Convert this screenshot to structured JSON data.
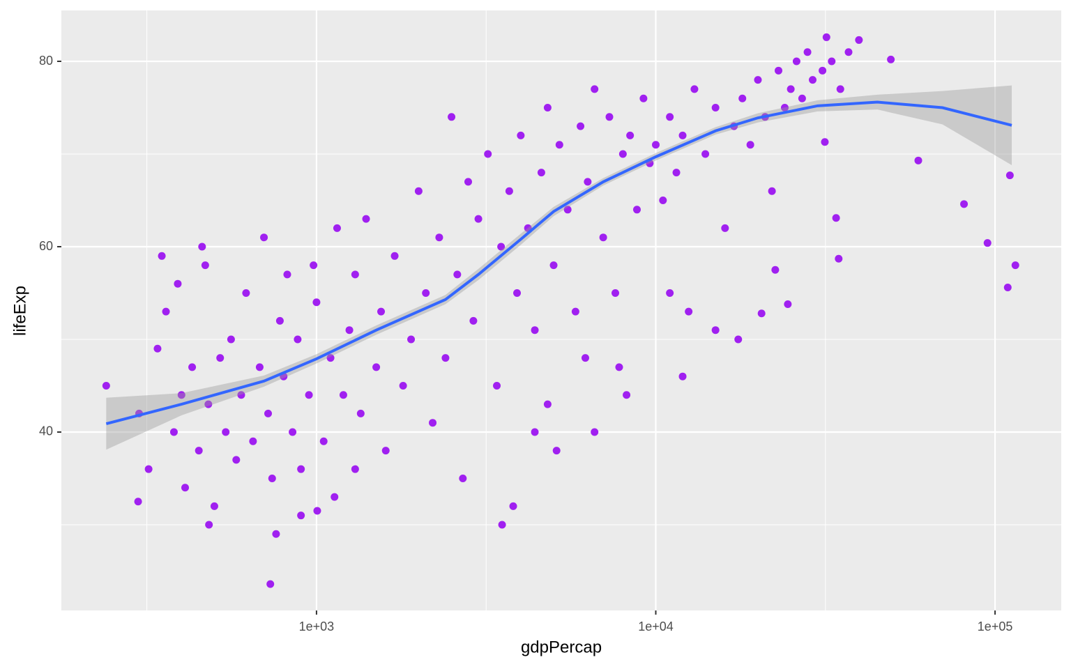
{
  "chart_data": {
    "type": "scatter",
    "x_label": "gdpPercap",
    "y_label": "lifeExp",
    "xlog": true,
    "grid": true,
    "xlim": [
      177,
      156700
    ],
    "ylim": [
      20.75,
      85.49
    ],
    "xticks": [
      {
        "value": 1000,
        "label": "1e+03"
      },
      {
        "value": 10000,
        "label": "1e+04"
      },
      {
        "value": 100000,
        "label": "1e+05"
      }
    ],
    "x_minor_breaks": [
      316.2,
      3162,
      31623
    ],
    "yticks": [
      40,
      60,
      80
    ],
    "y_minor_breaks": [
      30,
      50,
      70
    ],
    "color": "#A020F0",
    "x": [
      240,
      731,
      3524,
      114800,
      95000,
      109000,
      110600,
      81000,
      59400,
      31850,
      39700,
      49300,
      34000,
      34600,
      31500,
      298,
      482,
      1005,
      300,
      320,
      340,
      350,
      360,
      380,
      390,
      400,
      410,
      430,
      450,
      460,
      470,
      480,
      500,
      520,
      540,
      560,
      580,
      600,
      620,
      650,
      680,
      700,
      720,
      740,
      760,
      780,
      800,
      820,
      850,
      880,
      900,
      950,
      980,
      1000,
      1050,
      1100,
      1150,
      1200,
      1250,
      1300,
      1350,
      1400,
      1500,
      1550,
      1600,
      1700,
      1800,
      1900,
      2000,
      2100,
      2200,
      2300,
      2400,
      2500,
      2600,
      2700,
      2800,
      2900,
      3000,
      1130,
      1300,
      900,
      3200,
      3400,
      3500,
      3700,
      3900,
      4000,
      4200,
      4400,
      4600,
      4800,
      5000,
      5200,
      5500,
      5800,
      6000,
      6300,
      6600,
      7000,
      7300,
      7600,
      8000,
      8400,
      8800,
      9200,
      9600,
      4400,
      5100,
      6600,
      4800,
      3800,
      6200,
      7800,
      8200,
      10000,
      10500,
      11000,
      11500,
      12000,
      13000,
      14000,
      15000,
      16000,
      17000,
      18000,
      19000,
      20000,
      21000,
      22000,
      23000,
      24000,
      25000,
      26000,
      27000,
      28000,
      29000,
      31000,
      33000,
      35000,
      37000,
      12000,
      15000,
      17500,
      20500,
      22500,
      24500,
      12500,
      11000
    ],
    "values": [
      45.0,
      23.6,
      30.0,
      58.0,
      60.4,
      55.6,
      67.7,
      64.6,
      69.3,
      82.6,
      82.3,
      80.2,
      63.1,
      58.7,
      71.3,
      32.5,
      30.0,
      31.5,
      42,
      36,
      49,
      59,
      53,
      40,
      56,
      44,
      34,
      47,
      38,
      60,
      58,
      43,
      32,
      48,
      40,
      50,
      37,
      44,
      55,
      39,
      47,
      61,
      42,
      35,
      29,
      52,
      46,
      57,
      40,
      50,
      36,
      44,
      58,
      54,
      39,
      48,
      62,
      44,
      51,
      57,
      42,
      63,
      47,
      53,
      38,
      59,
      45,
      50,
      66,
      55,
      41,
      61,
      48,
      74,
      57,
      35,
      67,
      52,
      63,
      33,
      36,
      31,
      70,
      45,
      60,
      66,
      55,
      72,
      62,
      51,
      68,
      75,
      58,
      71,
      64,
      53,
      73,
      67,
      77,
      61,
      74,
      55,
      70,
      72,
      64,
      76,
      69,
      40,
      38,
      40,
      43,
      32,
      48,
      47,
      44,
      71,
      65,
      74,
      68,
      72,
      77,
      70,
      75,
      62,
      73,
      76,
      71,
      78,
      74,
      66,
      79,
      75,
      77,
      80,
      76,
      81,
      78,
      79,
      80,
      77,
      81,
      46,
      51,
      50,
      52.8,
      57.5,
      53.8,
      53,
      55
    ],
    "smooth": {
      "color": "#3366FF",
      "x": [
        240,
        400,
        700,
        1000,
        1500,
        2400,
        3000,
        4000,
        5000,
        7000,
        10000,
        15000,
        20000,
        30000,
        45000,
        70000,
        112000
      ],
      "y": [
        40.9,
        43,
        45.5,
        47.9,
        51,
        54.3,
        57,
        60.8,
        63.8,
        67,
        69.7,
        72.5,
        73.9,
        75.2,
        75.6,
        75,
        73.1
      ],
      "lower": [
        38.1,
        41.8,
        44.9,
        47.4,
        50.5,
        53.8,
        56.4,
        60.2,
        63.3,
        66.6,
        69.3,
        72.1,
        73.4,
        74.6,
        74.8,
        73.2,
        68.8
      ],
      "upper": [
        43.7,
        44.2,
        46.1,
        48.4,
        51.5,
        54.8,
        57.6,
        61.4,
        64.3,
        67.4,
        70.1,
        72.9,
        74.4,
        75.8,
        76.4,
        76.8,
        77.4
      ]
    }
  }
}
